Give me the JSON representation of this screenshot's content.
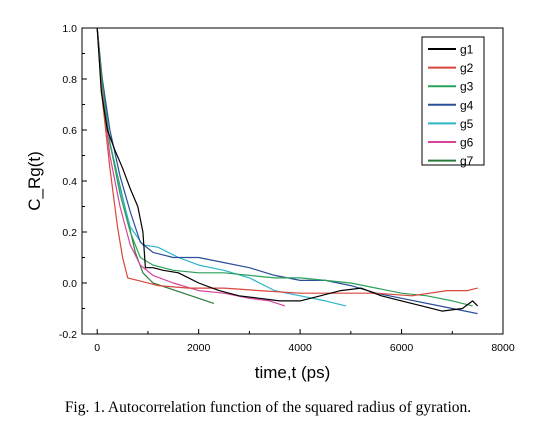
{
  "caption": "Fig. 1. Autocorrelation function of the squared radius of gyration.",
  "chart_data": {
    "type": "line",
    "title": "",
    "xlabel": "time,t (ps)",
    "ylabel": "C_Rg(t)",
    "xlim": [
      -300,
      8000
    ],
    "ylim": [
      -0.2,
      1.0
    ],
    "xticks": [
      0,
      2000,
      4000,
      6000,
      8000
    ],
    "yticks": [
      1.0,
      0.8,
      0.6,
      0.4,
      0.2,
      0.0,
      -0.2
    ],
    "xtick_labels": [
      "0",
      "2000",
      "4000",
      "6000",
      "8000"
    ],
    "ytick_labels": [
      "1.0",
      "0.8",
      "0.6",
      "0.4",
      "0.2",
      "0.0",
      "-0.2"
    ],
    "grid": false,
    "legend_position": "top-right",
    "series": [
      {
        "name": "g1",
        "color": "#000000",
        "x": [
          0,
          80,
          200,
          350,
          500,
          650,
          800,
          900,
          950,
          1100,
          1300,
          1600,
          2000,
          2400,
          2800,
          3200,
          3600,
          4000,
          4400,
          4800,
          5200,
          5600,
          6000,
          6400,
          6800,
          7200,
          7400,
          7500
        ],
        "y": [
          1.0,
          0.75,
          0.6,
          0.52,
          0.45,
          0.37,
          0.3,
          0.2,
          0.06,
          0.06,
          0.05,
          0.04,
          0.0,
          -0.03,
          -0.05,
          -0.06,
          -0.07,
          -0.07,
          -0.05,
          -0.03,
          -0.02,
          -0.05,
          -0.07,
          -0.09,
          -0.11,
          -0.1,
          -0.07,
          -0.09
        ]
      },
      {
        "name": "g2",
        "color": "#d9463a",
        "x": [
          0,
          100,
          250,
          400,
          500,
          600,
          800,
          1200,
          1800,
          2500,
          3200,
          4000,
          4800,
          5500,
          6200,
          6900,
          7300,
          7500
        ],
        "y": [
          1.0,
          0.72,
          0.45,
          0.22,
          0.1,
          0.02,
          0.01,
          -0.01,
          -0.02,
          -0.02,
          -0.03,
          -0.04,
          -0.04,
          -0.04,
          -0.05,
          -0.03,
          -0.03,
          -0.02
        ]
      },
      {
        "name": "g3",
        "color": "#2aa15a",
        "x": [
          0,
          100,
          250,
          450,
          650,
          850,
          1100,
          1500,
          2000,
          2500,
          3000,
          3500,
          4000,
          4500,
          5000,
          5500,
          6000,
          6500,
          7000,
          7400
        ],
        "y": [
          1.0,
          0.78,
          0.55,
          0.35,
          0.2,
          0.1,
          0.07,
          0.05,
          0.04,
          0.04,
          0.03,
          0.02,
          0.02,
          0.01,
          0.0,
          -0.02,
          -0.04,
          -0.05,
          -0.07,
          -0.09
        ]
      },
      {
        "name": "g4",
        "color": "#2a4e9a",
        "x": [
          0,
          100,
          250,
          450,
          650,
          850,
          1100,
          1500,
          2000,
          2500,
          3000,
          3500,
          4000,
          4500,
          5000,
          5500,
          6000,
          6500,
          7000,
          7500
        ],
        "y": [
          1.0,
          0.8,
          0.6,
          0.42,
          0.28,
          0.16,
          0.12,
          0.1,
          0.1,
          0.08,
          0.06,
          0.03,
          0.01,
          0.01,
          -0.01,
          -0.04,
          -0.06,
          -0.08,
          -0.1,
          -0.12
        ]
      },
      {
        "name": "g5",
        "color": "#2bb5c8",
        "x": [
          0,
          100,
          250,
          450,
          650,
          900,
          1200,
          1600,
          2000,
          2500,
          3000,
          3500,
          4000,
          4500,
          4900
        ],
        "y": [
          1.0,
          0.78,
          0.55,
          0.37,
          0.22,
          0.15,
          0.14,
          0.1,
          0.07,
          0.05,
          0.02,
          -0.03,
          -0.05,
          -0.07,
          -0.09
        ]
      },
      {
        "name": "g6",
        "color": "#d6449a",
        "x": [
          0,
          100,
          250,
          450,
          650,
          850,
          1100,
          1500,
          2000,
          2500,
          3000,
          3400,
          3700
        ],
        "y": [
          1.0,
          0.75,
          0.5,
          0.3,
          0.15,
          0.07,
          0.03,
          0.0,
          -0.03,
          -0.04,
          -0.06,
          -0.07,
          -0.09
        ]
      },
      {
        "name": "g7",
        "color": "#2a7a3e",
        "x": [
          0,
          100,
          250,
          450,
          600,
          750,
          900,
          1100,
          1400,
          1700,
          2000,
          2300
        ],
        "y": [
          1.0,
          0.78,
          0.55,
          0.38,
          0.25,
          0.12,
          0.04,
          0.0,
          -0.02,
          -0.04,
          -0.06,
          -0.08
        ]
      }
    ]
  }
}
